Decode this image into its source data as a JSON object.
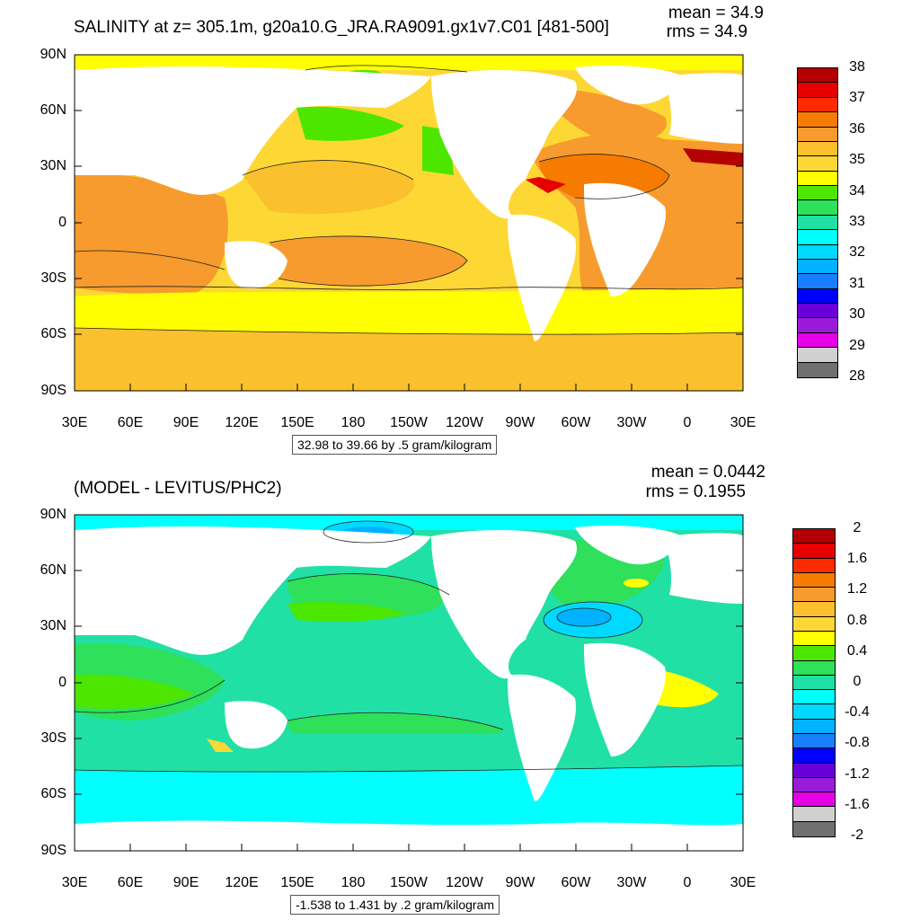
{
  "panel1": {
    "title": "SALINITY at z= 305.1m, g20a10.G_JRA.RA9091.gx1v7.C01 [481-500]",
    "mean": "mean = 34.9",
    "rms": "rms = 34.9",
    "footer": "32.98 to 39.66 by .5 gram/kilogram",
    "colorbar_labels": [
      "38",
      "37",
      "36",
      "35",
      "34",
      "33",
      "32",
      "31",
      "30",
      "29",
      "28"
    ],
    "colorbar_colors": [
      "#b30000",
      "#e60000",
      "#ff2a00",
      "#f57c00",
      "#f79b2e",
      "#fbc02d",
      "#fdd835",
      "#ffff00",
      "#4de600",
      "#2ee05a",
      "#21e0a5",
      "#00ffff",
      "#00d9ff",
      "#00b2ff",
      "#1a7fff",
      "#0000ff",
      "#6a00d9",
      "#9a1ad9",
      "#e600e6",
      "#d0d0d0",
      "#707070"
    ]
  },
  "panel2": {
    "title": "(MODEL - LEVITUS/PHC2)",
    "mean": "mean = 0.0442",
    "rms": "rms = 0.1955",
    "footer": "-1.538 to 1.431 by .2 gram/kilogram",
    "colorbar_labels": [
      "2",
      "1.6",
      "1.2",
      "0.8",
      "0.4",
      "0",
      "-0.4",
      "-0.8",
      "-1.2",
      "-1.6",
      "-2"
    ],
    "colorbar_colors": [
      "#b30000",
      "#e60000",
      "#ff2a00",
      "#f57c00",
      "#f79b2e",
      "#fbc02d",
      "#fdd835",
      "#ffff00",
      "#4de600",
      "#2ee05a",
      "#21e0a5",
      "#00ffff",
      "#00d9ff",
      "#00b2ff",
      "#1a7fff",
      "#0000ff",
      "#6a00d9",
      "#9a1ad9",
      "#e600e6",
      "#d0d0d0",
      "#707070"
    ]
  },
  "axes": {
    "lat_labels": [
      "90N",
      "60N",
      "30N",
      "0",
      "30S",
      "60S",
      "90S"
    ],
    "lon_labels": [
      "30E",
      "60E",
      "90E",
      "120E",
      "150E",
      "180",
      "150W",
      "120W",
      "90W",
      "60W",
      "30W",
      "0",
      "30E"
    ]
  }
}
